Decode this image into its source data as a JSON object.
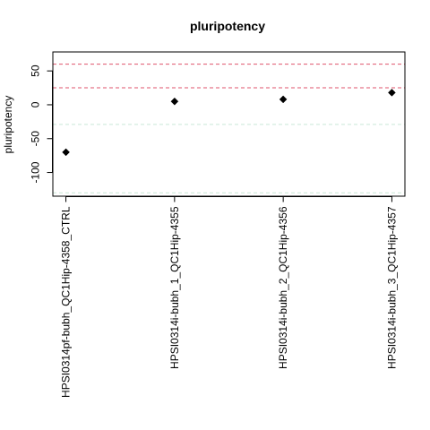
{
  "chart_data": {
    "type": "scatter",
    "title": "pluripotency",
    "xlabel": "",
    "ylabel": "pluripotency",
    "categories": [
      "HPSI0314pf-bubh_QC1Hip-4358_CTRL",
      "HPSI0314i-bubh_1_QC1Hip-4355",
      "HPSI0314i-bubh_2_QC1Hip-4356",
      "HPSI0314i-bubh_3_QC1Hip-4357"
    ],
    "values": [
      -70,
      5,
      8,
      18
    ],
    "ylim": [
      -135,
      78
    ],
    "yticks": [
      -100,
      -50,
      0,
      50
    ],
    "marker": "filled-diamond",
    "point_color": "#000000",
    "reference_lines": [
      {
        "y": 60,
        "color": "#df536b",
        "style": "dashed"
      },
      {
        "y": 25,
        "color": "#df536b",
        "style": "dashed"
      },
      {
        "y": -29,
        "color": "#c9e7d6",
        "style": "dashed"
      },
      {
        "y": -130,
        "color": "#c9e7d6",
        "style": "dashed"
      }
    ],
    "grid": false,
    "legend": "none"
  }
}
